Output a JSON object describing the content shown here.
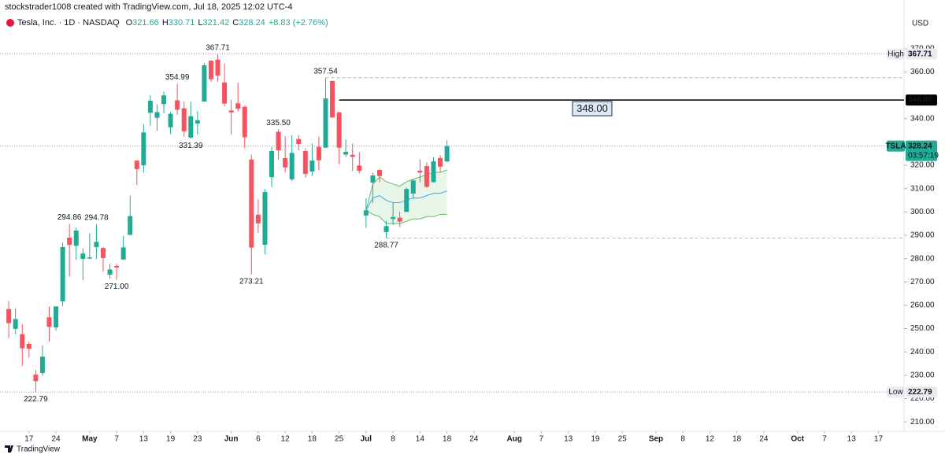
{
  "header": {
    "credit": "stockstrader1008 created with TradingView.com, Jul 18, 2025 12:02 UTC-4",
    "symbol": "Tesla, Inc. · 1D · NASDAQ",
    "ohlc": [
      {
        "key": "O",
        "value": "321.66"
      },
      {
        "key": "H",
        "value": "330.71"
      },
      {
        "key": "L",
        "value": "321.42"
      },
      {
        "key": "C",
        "value": "328.24"
      }
    ],
    "change": "+8.83 (+2.76%)",
    "currency": "USD"
  },
  "footer": {
    "brand": "TradingView"
  },
  "chart_data": {
    "type": "candlestick",
    "up_color": "#22ab94",
    "down_color": "#f7525f",
    "candles": [
      [
        258.36,
        261.8,
        245.93,
        252.35
      ],
      [
        249.91,
        258.75,
        247.54,
        254.11
      ],
      [
        247.61,
        251.97,
        233.89,
        241.55
      ],
      [
        243.47,
        244.34,
        237.68,
        241.37
      ],
      [
        230.26,
        232.21,
        222.79,
        227.5
      ],
      [
        230.96,
        242.79,
        229.85,
        237.97
      ],
      [
        254.86,
        259.45,
        244.43,
        250.74
      ],
      [
        250.5,
        259.54,
        249.2,
        259.51
      ],
      [
        261.69,
        286.85,
        259.63,
        284.95
      ],
      [
        288.98,
        294.86,
        272.42,
        285.88
      ],
      [
        285.5,
        293.32,
        279.47,
        292.03
      ],
      [
        279.9,
        284.45,
        270.78,
        282.16
      ],
      [
        280.01,
        290.87,
        279.81,
        280.52
      ],
      [
        284.9,
        294.78,
        279.81,
        287.21
      ],
      [
        284.57,
        284.85,
        274.4,
        280.26
      ],
      [
        273.1,
        277.73,
        271.35,
        275.35
      ],
      [
        276.88,
        277.92,
        271.0,
        276.22
      ],
      [
        279.63,
        289.8,
        279.41,
        284.82
      ],
      [
        290.21,
        307.04,
        290.0,
        298.26
      ],
      [
        321.99,
        322.21,
        311.5,
        318.38
      ],
      [
        320,
        337.59,
        316.8,
        334.07
      ],
      [
        342.5,
        350,
        337,
        347.68
      ],
      [
        340.34,
        346.14,
        334.72,
        342.82
      ],
      [
        346.24,
        351.62,
        342.33,
        349.98
      ],
      [
        336.3,
        343,
        333.37,
        342.09
      ],
      [
        347.87,
        354.99,
        341.63,
        343.82
      ],
      [
        344.43,
        347.35,
        332.2,
        334.62
      ],
      [
        331.9,
        347.27,
        331.39,
        341.04
      ],
      [
        337.92,
        343.18,
        333.21,
        339.34
      ],
      [
        347.35,
        363.79,
        347.32,
        362.89
      ],
      [
        364.84,
        365,
        355.91,
        356.9
      ],
      [
        365.29,
        367.71,
        356,
        358.43
      ],
      [
        355.52,
        363.68,
        345.29,
        346.46
      ],
      [
        343.5,
        348.02,
        333.33,
        342.69
      ],
      [
        346.6,
        355.4,
        343.04,
        344.27
      ],
      [
        345.1,
        345.6,
        327.33,
        332.05
      ],
      [
        322.49,
        324.55,
        273.21,
        284.7
      ],
      [
        298.83,
        305.5,
        291.14,
        295.14
      ],
      [
        285.96,
        309.83,
        281.85,
        308.58
      ],
      [
        314.94,
        327.83,
        310.67,
        326.09
      ],
      [
        334.4,
        335.5,
        322.5,
        326.43
      ],
      [
        323.08,
        332.56,
        316.86,
        319.11
      ],
      [
        313.97,
        332.99,
        313.3,
        325.31
      ],
      [
        331.29,
        332.99,
        326.41,
        329.13
      ],
      [
        326.09,
        327.26,
        314.74,
        316.35
      ],
      [
        317.31,
        329.32,
        315.45,
        322.05
      ],
      [
        327.95,
        332.36,
        317.78,
        322.16
      ],
      [
        327.54,
        357.54,
        327.48,
        348.68
      ],
      [
        356.17,
        356.26,
        340.44,
        340.47
      ],
      [
        342.7,
        343,
        320.4,
        327.55
      ],
      [
        324.61,
        331.05,
        323.61,
        325.78
      ],
      [
        324.51,
        329.34,
        317.5,
        323.63
      ],
      [
        319.9,
        325.58,
        316.6,
        317.66
      ],
      [
        298.46,
        305.89,
        293.21,
        300.71
      ],
      [
        312.63,
        316.83,
        303.82,
        315.65
      ],
      [
        317.99,
        318.45,
        312.76,
        315.35
      ],
      [
        291.37,
        296.15,
        288.77,
        293.94
      ],
      [
        297,
        304.05,
        294.35,
        297.81
      ],
      [
        297.55,
        300.15,
        293.55,
        295.88
      ],
      [
        300.05,
        310.48,
        300,
        309.87
      ],
      [
        307.89,
        314.09,
        305.65,
        313.51
      ],
      [
        317.73,
        322.6,
        312.67,
        316.9
      ],
      [
        319.68,
        321.2,
        310.5,
        310.78
      ],
      [
        312.8,
        323.5,
        312.62,
        321.67
      ],
      [
        323.15,
        324.34,
        317.06,
        319.41
      ],
      [
        321.66,
        330.71,
        321.42,
        328.24
      ]
    ],
    "band": {
      "x": [
        53,
        54,
        55,
        56,
        57,
        58,
        59,
        60,
        61,
        62,
        63,
        64,
        65
      ],
      "fill": "#e8f5e9",
      "series": [
        {
          "color": "#66bb6a",
          "values": [
            300.7,
            312,
            315,
            313,
            312,
            311,
            313,
            314,
            315,
            316,
            317,
            317,
            318
          ]
        },
        {
          "color": "#42a5f5",
          "values": [
            300.7,
            306,
            307,
            305,
            304,
            304,
            305,
            306,
            306,
            307,
            308,
            308,
            309
          ]
        },
        {
          "color": "#66bb6a",
          "values": [
            300.7,
            299,
            298,
            295,
            295,
            295,
            296,
            297,
            297,
            298,
            298,
            299,
            299
          ]
        }
      ]
    },
    "annotations": [
      {
        "x": 31,
        "value": 367.71,
        "side": "high"
      },
      {
        "x": 25,
        "value": 354.99,
        "side": "high"
      },
      {
        "x": 27,
        "value": 331.39,
        "side": "low"
      },
      {
        "x": 9,
        "value": 294.86,
        "side": "high"
      },
      {
        "x": 13,
        "value": 294.78,
        "side": "high"
      },
      {
        "x": 16,
        "value": 271.0,
        "label": "271.00",
        "side": "low"
      },
      {
        "x": 4,
        "value": 222.79,
        "side": "low"
      },
      {
        "x": 40,
        "value": 335.5,
        "label": "335.50",
        "side": "high"
      },
      {
        "x": 36,
        "value": 273.21,
        "side": "low"
      },
      {
        "x": 47,
        "value": 357.54,
        "side": "high",
        "extend": true
      },
      {
        "x": 56,
        "value": 288.77,
        "side": "low",
        "extend": true
      }
    ],
    "level": {
      "value": 348,
      "label": "348.00",
      "from": 49
    },
    "price_labels": {
      "high": {
        "name": "High",
        "value": 367.71
      },
      "low": {
        "name": "Low",
        "value": 222.79
      },
      "last": {
        "name": "TSLA",
        "value": 328.24,
        "countdown": "03:57:19"
      }
    },
    "xlim": [
      -1.3,
      132.8
    ],
    "ylim": [
      206,
      374
    ],
    "xticks": [
      {
        "value": 3,
        "label": "17"
      },
      {
        "value": 7,
        "label": "24"
      },
      {
        "value": 12,
        "label": "May"
      },
      {
        "value": 16,
        "label": "7"
      },
      {
        "value": 20,
        "label": "13"
      },
      {
        "value": 24,
        "label": "19"
      },
      {
        "value": 28,
        "label": "23"
      },
      {
        "value": 33,
        "label": "Jun"
      },
      {
        "value": 37,
        "label": "6"
      },
      {
        "value": 41,
        "label": "12"
      },
      {
        "value": 45,
        "label": "18"
      },
      {
        "value": 49,
        "label": "25"
      },
      {
        "value": 53,
        "label": "Jul"
      },
      {
        "value": 57,
        "label": "8"
      },
      {
        "value": 61,
        "label": "14"
      },
      {
        "value": 65,
        "label": "18"
      },
      {
        "value": 69,
        "label": "24"
      },
      {
        "value": 75,
        "label": "Aug"
      },
      {
        "value": 79,
        "label": "7"
      },
      {
        "value": 83,
        "label": "13"
      },
      {
        "value": 87,
        "label": "19"
      },
      {
        "value": 91,
        "label": "25"
      },
      {
        "value": 96,
        "label": "Sep"
      },
      {
        "value": 100,
        "label": "8"
      },
      {
        "value": 104,
        "label": "12"
      },
      {
        "value": 108,
        "label": "18"
      },
      {
        "value": 112,
        "label": "24"
      },
      {
        "value": 117,
        "label": "Oct"
      },
      {
        "value": 121,
        "label": "7"
      },
      {
        "value": 125,
        "label": "13"
      },
      {
        "value": 129,
        "label": "17"
      }
    ],
    "yticks": [
      {
        "value": 370,
        "label": "370.00"
      },
      {
        "value": 360,
        "label": "360.00"
      },
      {
        "value": 340,
        "label": "340.00"
      },
      {
        "value": 320,
        "label": "320.00"
      },
      {
        "value": 310,
        "label": "310.00"
      },
      {
        "value": 300,
        "label": "300.00"
      },
      {
        "value": 290,
        "label": "290.00"
      },
      {
        "value": 280,
        "label": "280.00"
      },
      {
        "value": 270,
        "label": "270.00"
      },
      {
        "value": 260,
        "label": "260.00"
      },
      {
        "value": 250,
        "label": "250.00"
      },
      {
        "value": 240,
        "label": "240.00"
      },
      {
        "value": 230,
        "label": "230.00"
      },
      {
        "value": 220,
        "label": "220.00"
      },
      {
        "value": 210,
        "label": "210.00"
      }
    ]
  }
}
